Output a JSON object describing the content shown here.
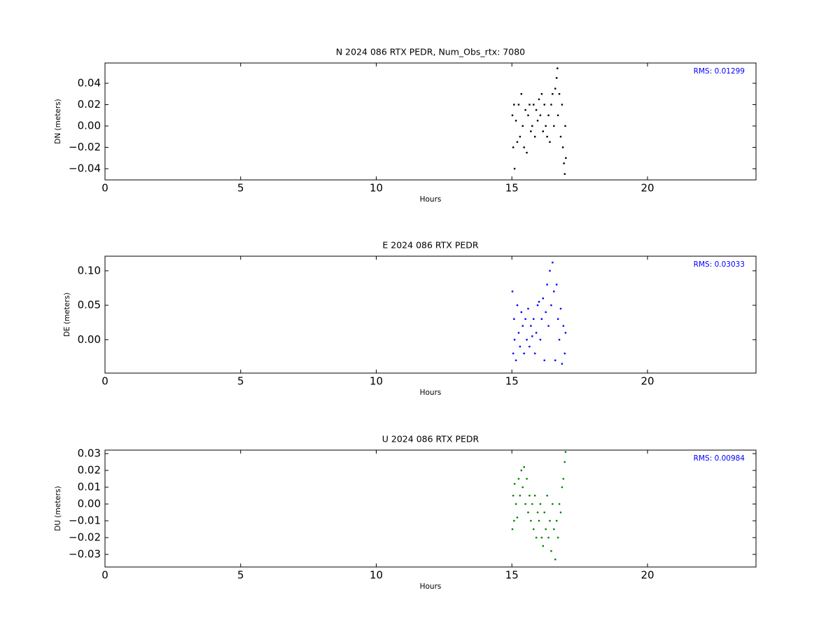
{
  "chart_data": [
    {
      "type": "scatter",
      "title": "N 2024 086 RTX  PEDR, Num_Obs_rtx: 7080",
      "xlabel": "Hours",
      "ylabel": "DN (meters)",
      "annotation": "RMS:  0.01299",
      "annotation_color": "#0000ff",
      "color": "#000000",
      "xlim": [
        0,
        24
      ],
      "xticks": [
        0,
        5,
        10,
        15,
        20
      ],
      "ylim": [
        -0.0505,
        0.059
      ],
      "yticks": [
        {
          "value": -0.04,
          "label": "−0.04"
        },
        {
          "value": -0.02,
          "label": "−0.02"
        },
        {
          "value": 0,
          "label": "0.00"
        },
        0.02,
        0.04
      ],
      "x": [
        15.02,
        15.05,
        15.08,
        15.1,
        15.15,
        15.2,
        15.25,
        15.3,
        15.35,
        15.4,
        15.45,
        15.5,
        15.55,
        15.6,
        15.65,
        15.7,
        15.75,
        15.8,
        15.85,
        15.9,
        15.95,
        16.0,
        16.05,
        16.1,
        16.15,
        16.2,
        16.25,
        16.3,
        16.35,
        16.4,
        16.45,
        16.5,
        16.55,
        16.6,
        16.65,
        16.68,
        16.7,
        16.75,
        16.8,
        16.85,
        16.88,
        16.92,
        16.95,
        16.97,
        16.99
      ],
      "values": [
        0.01,
        -0.02,
        0.02,
        -0.04,
        0.005,
        -0.015,
        0.02,
        -0.01,
        0.03,
        0.0,
        -0.02,
        0.015,
        -0.025,
        0.01,
        0.02,
        -0.005,
        0.0,
        0.02,
        -0.01,
        0.015,
        0.005,
        0.025,
        0.01,
        0.03,
        -0.005,
        0.02,
        0.0,
        -0.01,
        0.01,
        -0.015,
        0.02,
        0.03,
        0.0,
        0.035,
        0.045,
        0.054,
        0.01,
        0.03,
        -0.01,
        0.02,
        -0.02,
        -0.035,
        -0.045,
        0.0,
        -0.03
      ]
    },
    {
      "type": "scatter",
      "title": "E 2024 086 RTX  PEDR",
      "xlabel": "Hours",
      "ylabel": "DE (meters)",
      "annotation": "RMS:  0.03033",
      "annotation_color": "#0000ff",
      "color": "#0000ff",
      "xlim": [
        0,
        24
      ],
      "xticks": [
        0,
        5,
        10,
        15,
        20
      ],
      "ylim": [
        -0.0485,
        0.1212
      ],
      "yticks": [
        {
          "value": 0,
          "label": "0.00"
        },
        0.05,
        {
          "value": 0.1,
          "label": "0.10"
        }
      ],
      "x": [
        15.02,
        15.05,
        15.08,
        15.1,
        15.15,
        15.2,
        15.25,
        15.3,
        15.35,
        15.4,
        15.45,
        15.5,
        15.55,
        15.6,
        15.65,
        15.7,
        15.75,
        15.8,
        15.85,
        15.9,
        15.95,
        16.0,
        16.05,
        16.1,
        16.15,
        16.2,
        16.25,
        16.3,
        16.35,
        16.4,
        16.45,
        16.5,
        16.55,
        16.6,
        16.65,
        16.7,
        16.75,
        16.8,
        16.85,
        16.9,
        16.95,
        16.98
      ],
      "values": [
        0.07,
        -0.02,
        0.03,
        0.0,
        -0.03,
        0.05,
        0.01,
        -0.01,
        0.04,
        0.02,
        -0.02,
        0.03,
        0.0,
        0.045,
        -0.01,
        0.02,
        0.005,
        0.03,
        -0.02,
        0.01,
        0.05,
        0.055,
        0.0,
        0.03,
        0.06,
        -0.03,
        0.04,
        0.08,
        0.02,
        0.1,
        0.05,
        0.112,
        0.07,
        -0.03,
        0.08,
        0.03,
        0.0,
        0.045,
        -0.035,
        0.02,
        -0.02,
        0.01
      ]
    },
    {
      "type": "scatter",
      "title": "U 2024 086 RTX  PEDR",
      "xlabel": "Hours",
      "ylabel": "DU (meters)",
      "annotation": "RMS:  0.00984",
      "annotation_color": "#0000ff",
      "color": "#008000",
      "xlim": [
        0,
        24
      ],
      "xticks": [
        0,
        5,
        10,
        15,
        20
      ],
      "ylim": [
        -0.0375,
        0.0321
      ],
      "yticks": [
        {
          "value": -0.03,
          "label": "−0.03"
        },
        {
          "value": -0.02,
          "label": "−0.02"
        },
        {
          "value": -0.01,
          "label": "−0.01"
        },
        {
          "value": 0,
          "label": "0.00"
        },
        0.01,
        0.02,
        0.03
      ],
      "x": [
        15.02,
        15.05,
        15.08,
        15.1,
        15.15,
        15.2,
        15.25,
        15.3,
        15.35,
        15.4,
        15.45,
        15.5,
        15.55,
        15.6,
        15.65,
        15.7,
        15.75,
        15.8,
        15.85,
        15.9,
        15.95,
        16.0,
        16.05,
        16.1,
        16.15,
        16.2,
        16.25,
        16.3,
        16.35,
        16.4,
        16.45,
        16.5,
        16.55,
        16.6,
        16.65,
        16.7,
        16.75,
        16.8,
        16.85,
        16.9,
        16.95,
        16.98
      ],
      "values": [
        -0.015,
        0.005,
        -0.01,
        0.012,
        0.0,
        -0.008,
        0.015,
        0.005,
        0.02,
        0.01,
        0.022,
        0.0,
        0.015,
        -0.005,
        0.005,
        -0.01,
        0.0,
        -0.015,
        0.005,
        -0.02,
        -0.005,
        -0.01,
        0.0,
        -0.02,
        -0.025,
        -0.005,
        -0.015,
        0.005,
        -0.02,
        -0.01,
        -0.028,
        0.0,
        -0.015,
        -0.033,
        -0.01,
        -0.02,
        0.0,
        -0.005,
        0.01,
        0.015,
        0.025,
        0.031
      ]
    }
  ]
}
